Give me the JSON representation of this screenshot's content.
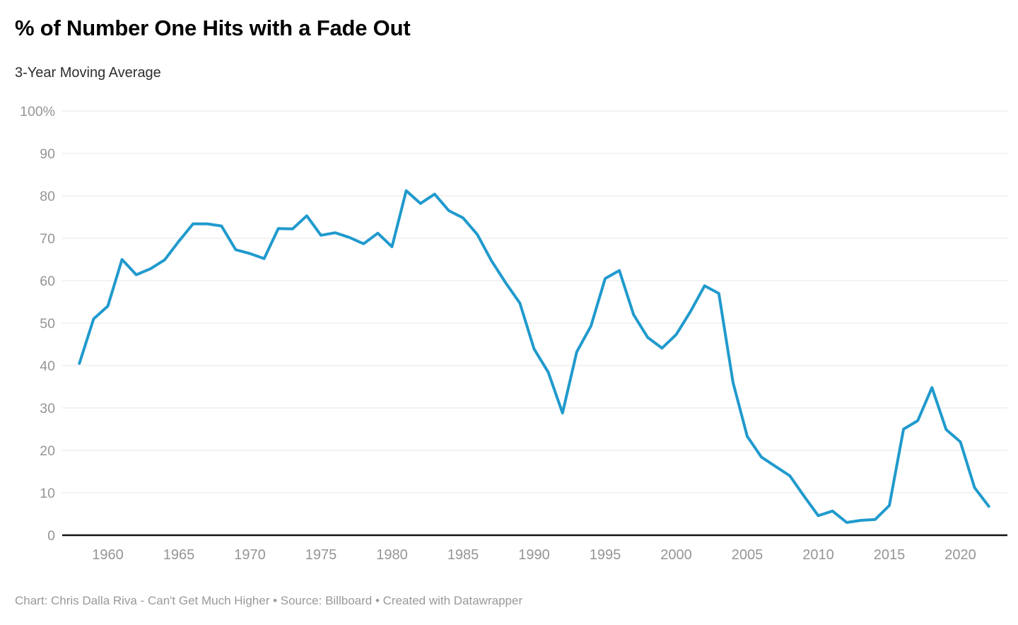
{
  "header": {
    "title": "% of Number One Hits with a Fade Out",
    "subtitle": "3-Year Moving Average"
  },
  "footer": {
    "text": "Chart: Chris Dalla Riva - Can't Get Much Higher • Source: Billboard • Created with Datawrapper"
  },
  "colors": {
    "line": "#209acd",
    "grid": "#e4e4e4",
    "axis": "#111111",
    "tick_label": "#959595"
  },
  "chart_data": {
    "type": "line",
    "title": "% of Number One Hits with a Fade Out",
    "subtitle": "3-Year Moving Average",
    "xlabel": "",
    "ylabel": "",
    "legend": "none",
    "grid": "horizontal",
    "ylim": [
      0,
      100
    ],
    "xlim": [
      1958,
      2022
    ],
    "y_ticks": [
      0,
      10,
      20,
      30,
      40,
      50,
      60,
      70,
      80,
      90,
      100
    ],
    "y_tick_top_label": "100%",
    "x_ticks": [
      1960,
      1965,
      1970,
      1975,
      1980,
      1985,
      1990,
      1995,
      2000,
      2005,
      2010,
      2015,
      2020
    ],
    "series_name": "% of number one hits with a fade out (3-year moving average)",
    "x": [
      1958,
      1959,
      1960,
      1961,
      1962,
      1963,
      1964,
      1965,
      1966,
      1967,
      1968,
      1969,
      1970,
      1971,
      1972,
      1973,
      1974,
      1975,
      1976,
      1977,
      1978,
      1979,
      1980,
      1981,
      1982,
      1983,
      1984,
      1985,
      1986,
      1987,
      1988,
      1989,
      1990,
      1991,
      1992,
      1993,
      1994,
      1995,
      1996,
      1997,
      1998,
      1999,
      2000,
      2001,
      2002,
      2003,
      2004,
      2005,
      2006,
      2007,
      2008,
      2009,
      2010,
      2011,
      2012,
      2013,
      2014,
      2015,
      2016,
      2017,
      2018,
      2019,
      2020,
      2021,
      2022
    ],
    "values": [
      40.5,
      51,
      54,
      65,
      61.4,
      62.8,
      64.9,
      69.3,
      73.4,
      73.4,
      72.9,
      67.3,
      66.4,
      65.2,
      72.3,
      72.2,
      75.3,
      70.7,
      71.3,
      70.2,
      68.7,
      71.2,
      68,
      81.2,
      78.2,
      80.4,
      76.5,
      74.8,
      70.9,
      64.7,
      59.5,
      54.7,
      43.9,
      38.4,
      28.8,
      43.2,
      49.3,
      60.5,
      62.4,
      52,
      46.6,
      44.1,
      47.3,
      52.7,
      58.8,
      57,
      36,
      23.3,
      18.4,
      16.2,
      14,
      9.2,
      4.6,
      5.7,
      3,
      3.5,
      3.7,
      7,
      25,
      27,
      34.8,
      24.9,
      22,
      11.2,
      6.8
    ]
  }
}
